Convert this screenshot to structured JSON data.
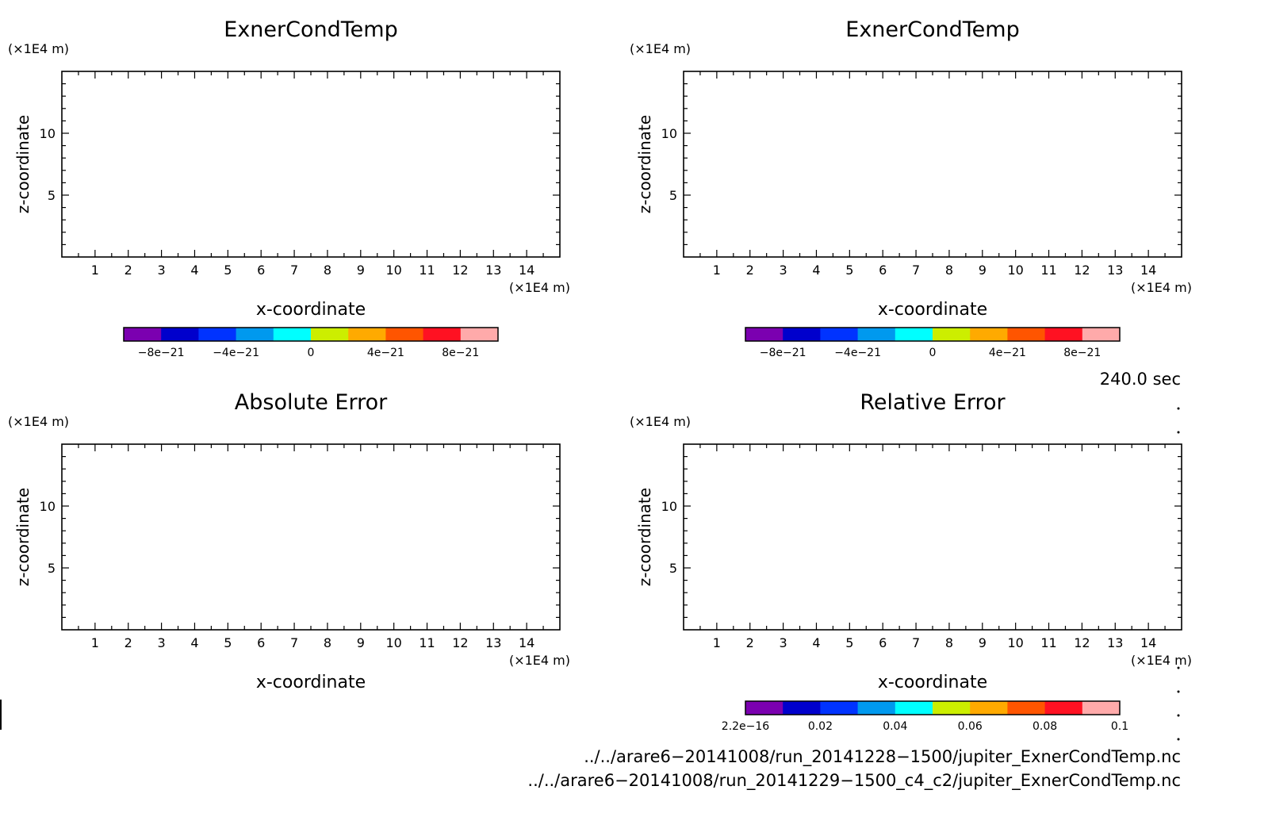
{
  "chart_data": [
    {
      "type": "heatmap",
      "title": "ExnerCondTemp",
      "xlabel": "x-coordinate",
      "ylabel": "z-coordinate",
      "x_unit": "(×1E4 m)",
      "y_unit": "(×1E4 m)",
      "xlim": [
        0,
        15
      ],
      "ylim": [
        0,
        15
      ],
      "xticks": [
        "1",
        "2",
        "3",
        "4",
        "5",
        "6",
        "7",
        "8",
        "9",
        "10",
        "11",
        "12",
        "13",
        "14"
      ],
      "yticks": [
        "5",
        "10"
      ],
      "values": [],
      "colorbar": {
        "colors": [
          "#7b00b0",
          "#0000cc",
          "#0033ff",
          "#0099ee",
          "#00ffff",
          "#ccee00",
          "#ffaa00",
          "#ff5500",
          "#ff1122",
          "#ffaaaa"
        ],
        "labels": [
          "−8e−21",
          "−4e−21",
          "0",
          "4e−21",
          "8e−21"
        ]
      }
    },
    {
      "type": "heatmap",
      "title": "ExnerCondTemp",
      "xlabel": "x-coordinate",
      "ylabel": "z-coordinate",
      "x_unit": "(×1E4 m)",
      "y_unit": "(×1E4 m)",
      "xlim": [
        0,
        15
      ],
      "ylim": [
        0,
        15
      ],
      "xticks": [
        "1",
        "2",
        "3",
        "4",
        "5",
        "6",
        "7",
        "8",
        "9",
        "10",
        "11",
        "12",
        "13",
        "14"
      ],
      "yticks": [
        "5",
        "10"
      ],
      "values": [],
      "colorbar": {
        "colors": [
          "#7b00b0",
          "#0000cc",
          "#0033ff",
          "#0099ee",
          "#00ffff",
          "#ccee00",
          "#ffaa00",
          "#ff5500",
          "#ff1122",
          "#ffaaaa"
        ],
        "labels": [
          "−8e−21",
          "−4e−21",
          "0",
          "4e−21",
          "8e−21"
        ]
      }
    },
    {
      "type": "heatmap",
      "title": "Absolute Error",
      "xlabel": "x-coordinate",
      "ylabel": "z-coordinate",
      "x_unit": "(×1E4 m)",
      "y_unit": "(×1E4 m)",
      "xlim": [
        0,
        15
      ],
      "ylim": [
        0,
        15
      ],
      "xticks": [
        "1",
        "2",
        "3",
        "4",
        "5",
        "6",
        "7",
        "8",
        "9",
        "10",
        "11",
        "12",
        "13",
        "14"
      ],
      "yticks": [
        "5",
        "10"
      ],
      "values": []
    },
    {
      "type": "heatmap",
      "title": "Relative Error",
      "xlabel": "x-coordinate",
      "ylabel": "z-coordinate",
      "x_unit": "(×1E4 m)",
      "y_unit": "(×1E4 m)",
      "xlim": [
        0,
        15
      ],
      "ylim": [
        0,
        15
      ],
      "xticks": [
        "1",
        "2",
        "3",
        "4",
        "5",
        "6",
        "7",
        "8",
        "9",
        "10",
        "11",
        "12",
        "13",
        "14"
      ],
      "yticks": [
        "5",
        "10"
      ],
      "values": [],
      "colorbar": {
        "colors": [
          "#7b00b0",
          "#0000cc",
          "#0033ff",
          "#0099ee",
          "#00ffff",
          "#ccee00",
          "#ffaa00",
          "#ff5500",
          "#ff1122",
          "#ffaaaa"
        ],
        "labels": [
          "2.2e−16",
          "0.02",
          "0.04",
          "0.06",
          "0.08",
          "0.1"
        ]
      }
    }
  ],
  "time_label": "240.0 sec",
  "files": [
    "../../arare6−20141008/run_20141228−1500/jupiter_ExnerCondTemp.nc",
    "../../arare6−20141008/run_20141229−1500_c4_c2/jupiter_ExnerCondTemp.nc"
  ]
}
